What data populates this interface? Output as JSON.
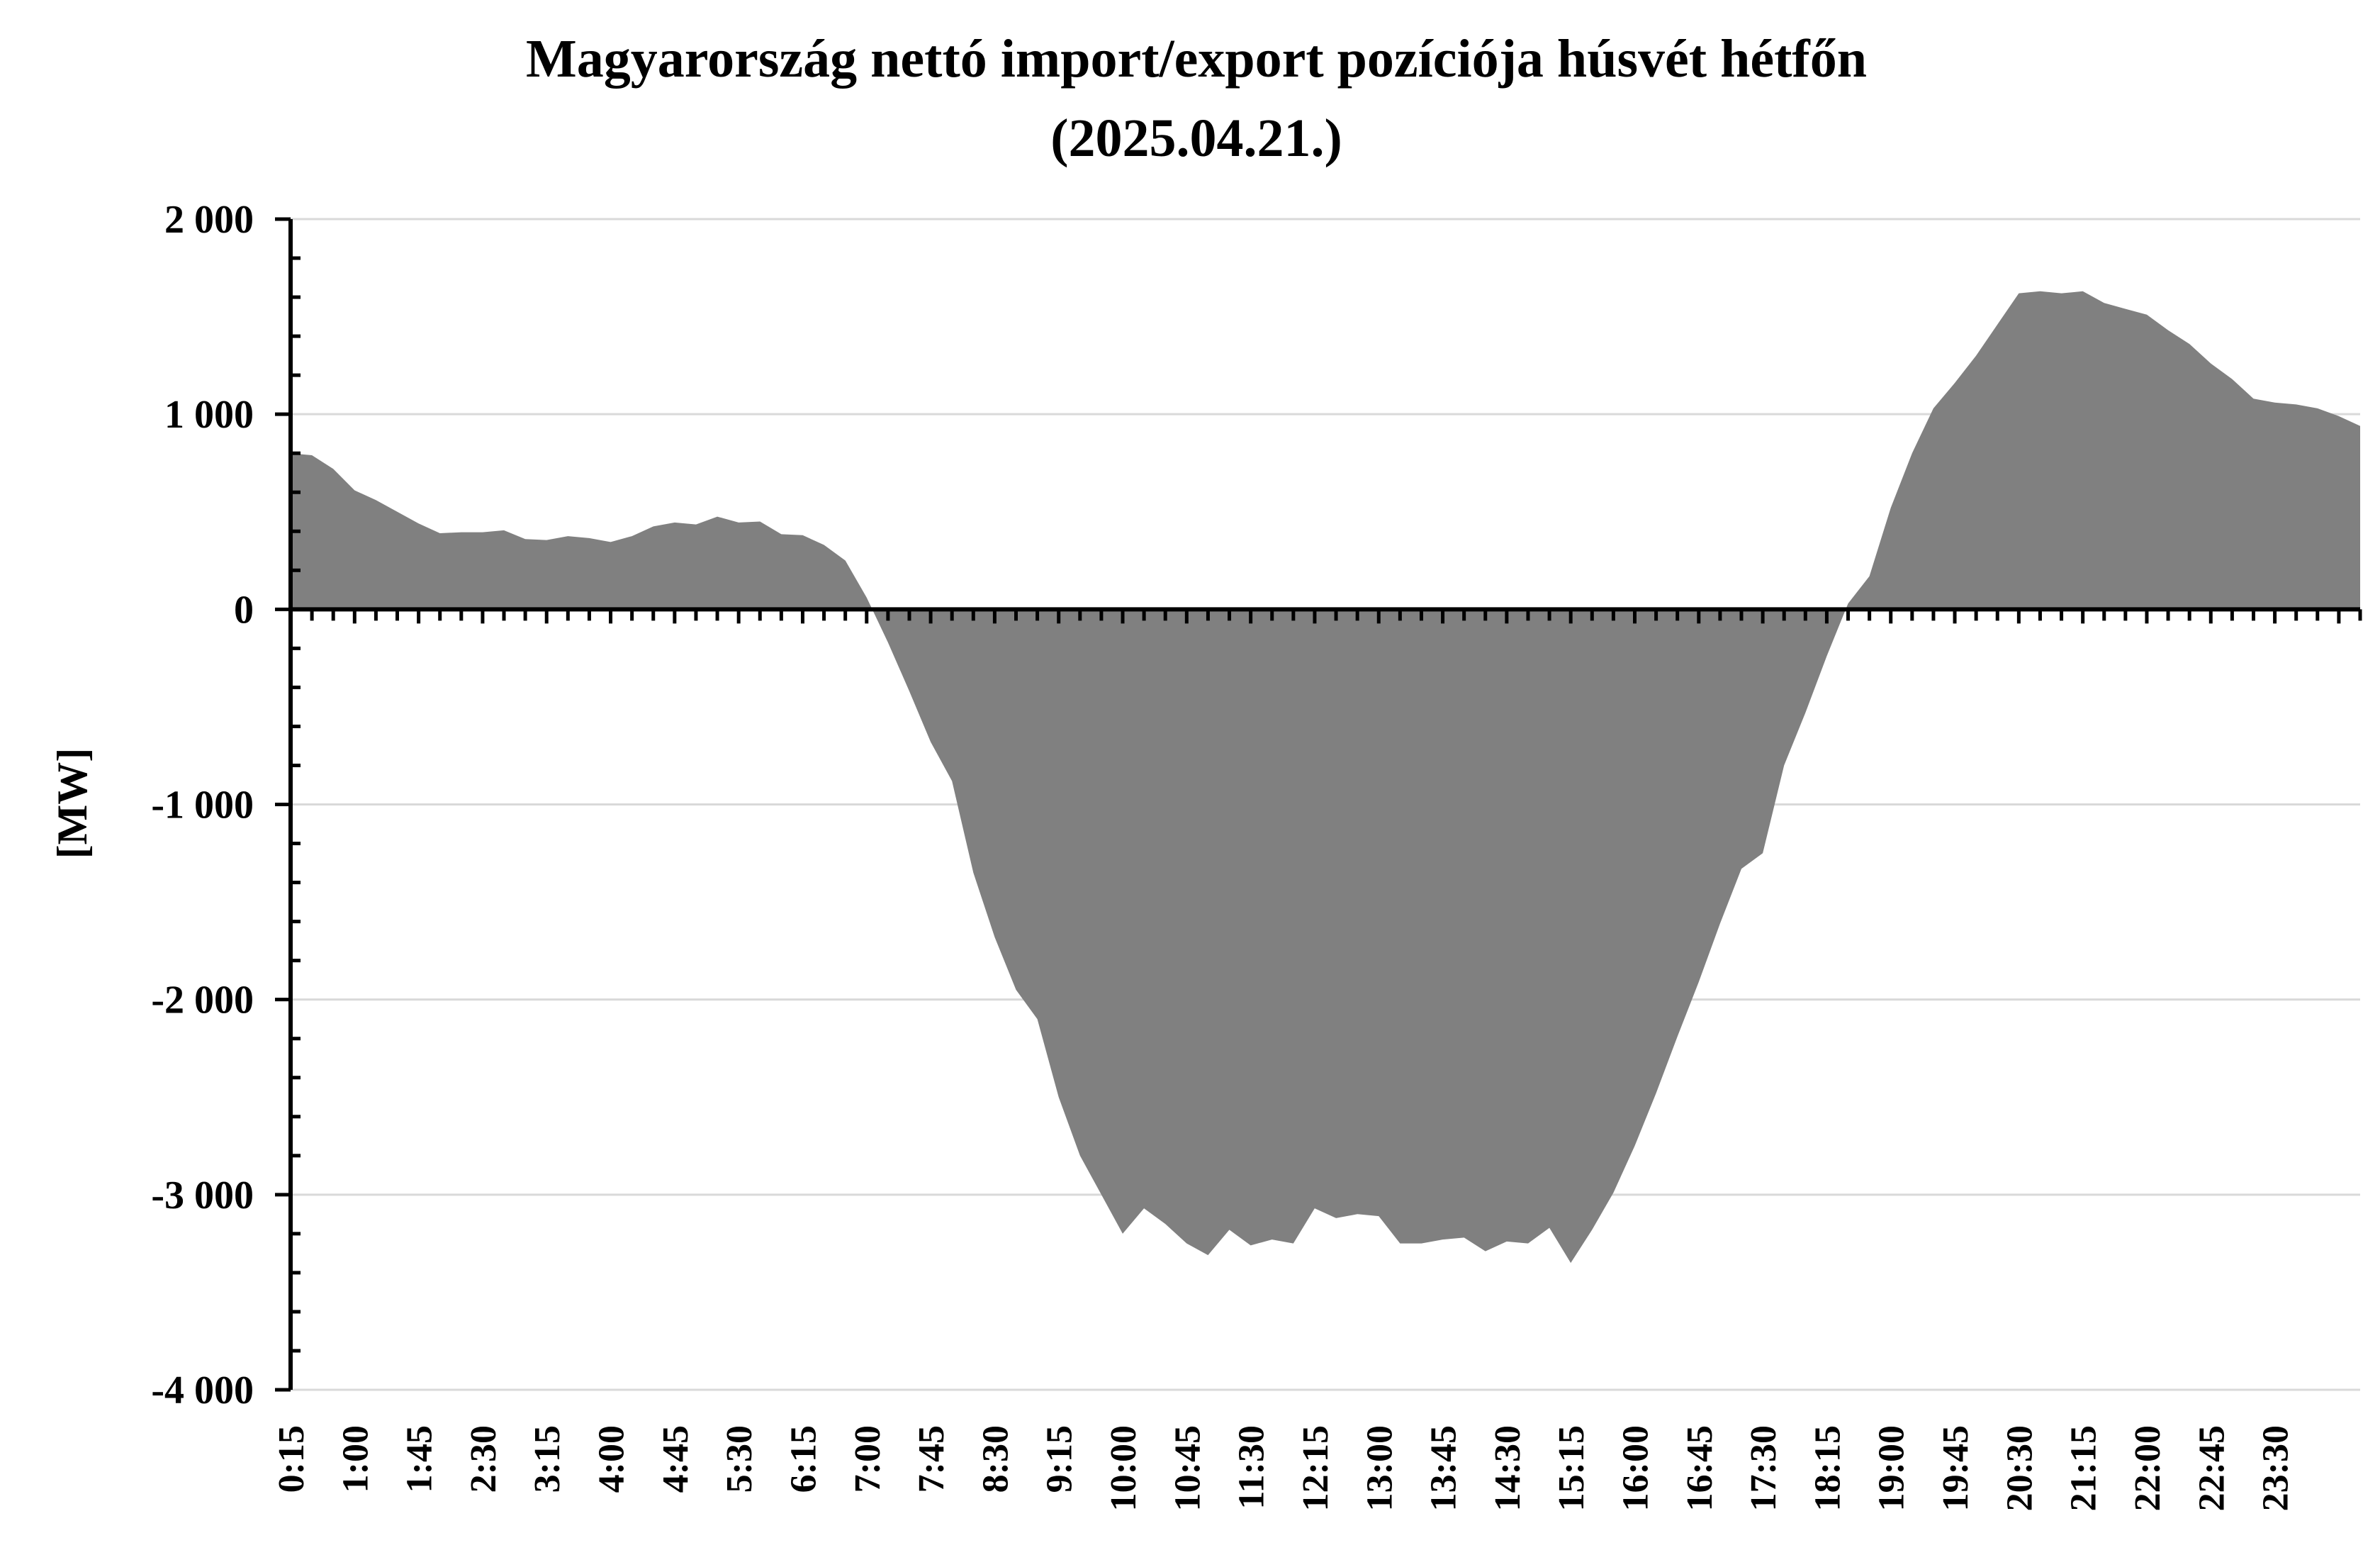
{
  "chart_data": {
    "type": "area",
    "title": "Magyarország nettó import/export pozíciója húsvét hétfőn",
    "subtitle": "(2025.04.21.)",
    "ylabel": "[MW]",
    "xlabel": "",
    "ylim": [
      -4000,
      2000
    ],
    "ytick_labels": [
      "2 000",
      "1 000",
      "0",
      "-1 000",
      "-2 000",
      "-3 000",
      "-4 000"
    ],
    "ytick_values": [
      2000,
      1000,
      0,
      -1000,
      -2000,
      -3000,
      -4000
    ],
    "xtick_labels": [
      "0:15",
      "1:00",
      "1:45",
      "2:30",
      "3:15",
      "4:00",
      "4:45",
      "5:30",
      "6:15",
      "7:00",
      "7:45",
      "8:30",
      "9:15",
      "10:00",
      "10:45",
      "11:30",
      "12:15",
      "13:00",
      "13:45",
      "14:30",
      "15:15",
      "16:00",
      "16:45",
      "17:30",
      "18:15",
      "19:00",
      "19:45",
      "20:30",
      "21:15",
      "22:00",
      "22:45",
      "23:30"
    ],
    "grid": true,
    "fill_color": "#808080",
    "x_start": "0:15",
    "x_step_minutes": 15,
    "values": [
      800,
      790,
      720,
      610,
      560,
      500,
      440,
      390,
      395,
      395,
      405,
      360,
      355,
      375,
      365,
      345,
      375,
      425,
      445,
      435,
      475,
      445,
      450,
      385,
      380,
      330,
      250,
      60,
      -170,
      -420,
      -680,
      -880,
      -1350,
      -1680,
      -1950,
      -2100,
      -2500,
      -2800,
      -3000,
      -3200,
      -3070,
      -3150,
      -3250,
      -3310,
      -3180,
      -3260,
      -3230,
      -3250,
      -3070,
      -3120,
      -3100,
      -3110,
      -3250,
      -3250,
      -3230,
      -3220,
      -3290,
      -3240,
      -3250,
      -3170,
      -3350,
      -3180,
      -2990,
      -2750,
      -2480,
      -2190,
      -1910,
      -1610,
      -1330,
      -1250,
      -800,
      -530,
      -240,
      30,
      170,
      520,
      800,
      1030,
      1160,
      1300,
      1460,
      1620,
      1630,
      1620,
      1630,
      1570,
      1540,
      1510,
      1430,
      1360,
      1260,
      1180,
      1080,
      1060,
      1050,
      1030,
      990,
      940
    ]
  }
}
